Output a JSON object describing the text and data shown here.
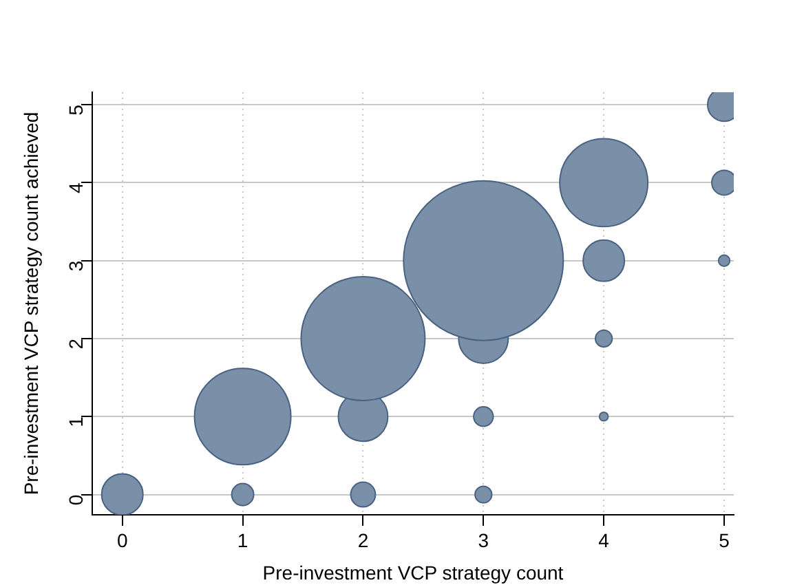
{
  "chart_data": {
    "type": "bubble",
    "xlabel": "Pre-investment VCP strategy count",
    "ylabel": "Pre-investment VCP strategy count achieved",
    "x": [
      0,
      1,
      2,
      3,
      1,
      2,
      3,
      4,
      2,
      3,
      4,
      3,
      4,
      5,
      4,
      5,
      5
    ],
    "values": [
      0,
      0,
      0,
      0,
      1,
      1,
      1,
      1,
      2,
      2,
      2,
      3,
      3,
      3,
      4,
      4,
      5
    ],
    "sizes": [
      0.067,
      0.019,
      0.024,
      0.011,
      0.364,
      0.096,
      0.015,
      0.003,
      0.602,
      0.096,
      0.011,
      1,
      0.067,
      0.005,
      0.304,
      0.024,
      0.043
    ],
    "color": "#7a90a8",
    "xlim": [
      -0.25,
      5.08
    ],
    "xticks": [
      0,
      1,
      2,
      3,
      4,
      5
    ],
    "ylim": [
      -0.26,
      5.16
    ],
    "yticks": [
      0,
      1,
      2,
      3,
      4,
      5
    ],
    "grid": true,
    "legend": false
  }
}
